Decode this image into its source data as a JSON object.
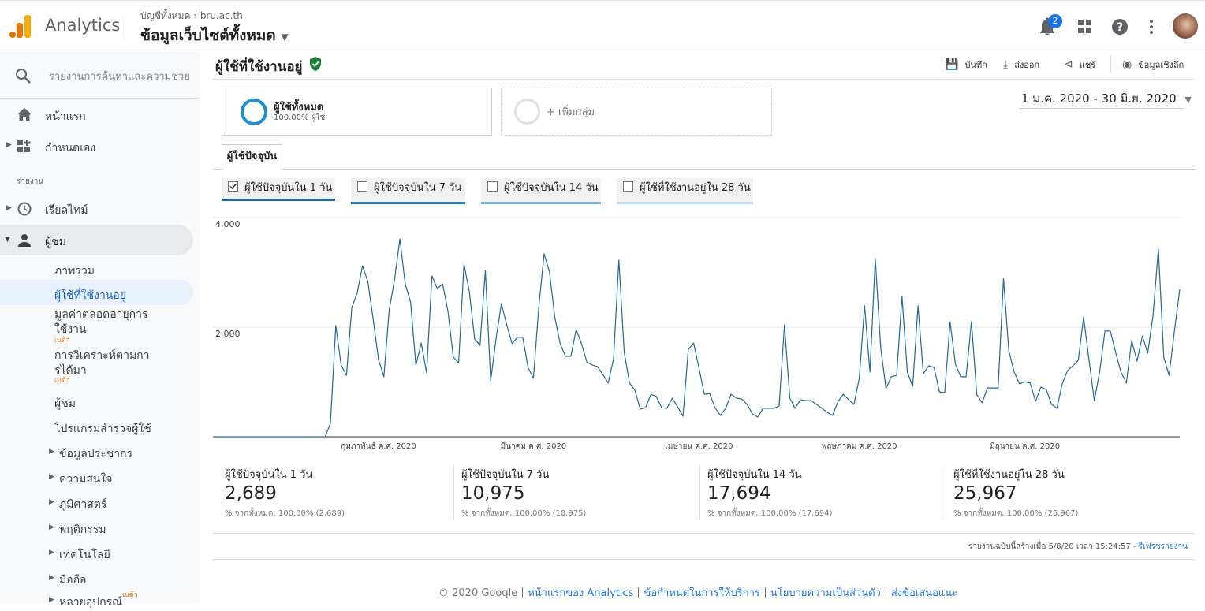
{
  "header": {
    "app_name": "Analytics",
    "breadcrumb": [
      "บัญชีทั้งหมด",
      "bru.ac.th"
    ],
    "view": "ข้อมูลเว็บไซต์ทั้งหมด",
    "notifications": "2"
  },
  "sidebar": {
    "search": "รายงานการค้นหาและความช่วย",
    "home": "หน้าแรก",
    "customization": "กำหนดเอง",
    "reports_heading": "รายงาน",
    "realtime": "เรียลไทม์",
    "audience": "ผู้ชม",
    "audience_items": [
      "ภาพรวม",
      "ผู้ใช้ที่ใช้งานอยู่",
      "มูลค่าตลอดอายุการใช้งาน",
      "การวิเคราะห์ตามการได้มา",
      "ผู้ชม",
      "โปรแกรมสำรวจผู้ใช้",
      "ข้อมูลประชากร",
      "ความสนใจ",
      "ภูมิศาสตร์",
      "พฤติกรรม",
      "เทคโนโลยี",
      "มือถือ",
      "หลายอุปกรณ์"
    ],
    "beta": "เบต้า"
  },
  "report": {
    "title": "ผู้ใช้ที่ใช้งานอยู่",
    "actions": [
      "บันทึก",
      "ส่งออก",
      "แชร์",
      "ข้อมูลเชิงลึก"
    ],
    "segment": {
      "name": "ผู้ใช้ทั้งหมด",
      "detail": "100.00% ผู้ใช้"
    },
    "add_segment": "+ เพิ่มกลุ่ม",
    "date_range": "1 ม.ค. 2020 - 30 มิ.ย. 2020",
    "tab": "ผู้ใช้ปัจจุบัน",
    "metric_options": [
      {
        "label": "ผู้ใช้ปัจจุบันใน 7 วัน",
        "color": "#2f80ba"
      },
      {
        "label": "ผู้ใช้ปัจจุบันใน 14 วัน",
        "color": "#7db4da"
      },
      {
        "label": "ผู้ใช้ที่ใช้งานอยู่ใน 28 วัน",
        "color": "#bcd8ec"
      }
    ],
    "summary": [
      {
        "label": "ผู้ใช้ปัจจุบันใน 1 วัน",
        "value": "2,689",
        "detail": "% จากทั้งหมด: 100.00% (2,689)"
      },
      {
        "label": "ผู้ใช้ปัจจุบันใน 7 วัน",
        "value": "10,975",
        "detail": "% จากทั้งหมด: 100.00% (10,975)"
      },
      {
        "label": "ผู้ใช้ปัจจุบันใน 14 วัน",
        "value": "17,694",
        "detail": "% จากทั้งหมด: 100.00% (17,694)"
      },
      {
        "label": "ผู้ใช้ที่ใช้งานอยู่ใน 28 วัน",
        "value": "25,967",
        "detail": "% จากทั้งหมด: 100.00% (25,967)"
      }
    ],
    "generated": "รายงานฉบับนี้สร้างเมื่อ 5/8/20 เวลา 15:24:57 -",
    "refresh": "รีเฟรชรายงาน"
  },
  "footer": {
    "copyright": "© 2020 Google",
    "links": [
      "หน้าแรกของ Analytics",
      "ข้อกำหนดในการให้บริการ",
      "นโยบายความเป็นส่วนตัว",
      "ส่งข้อเสนอแนะ"
    ]
  },
  "chart_data": {
    "type": "line",
    "series": [
      {
        "name": "ผู้ใช้ปัจจุบันใน 1 วัน",
        "color": "#22699b",
        "values": [
          0,
          0,
          0,
          0,
          0,
          0,
          0,
          0,
          0,
          0,
          0,
          0,
          0,
          0,
          0,
          0,
          0,
          0,
          0,
          0,
          0,
          0,
          245,
          2030,
          1310,
          1120,
          2360,
          2620,
          3120,
          2835,
          2145,
          1410,
          1095,
          2315,
          2865,
          3610,
          2790,
          2460,
          1310,
          1710,
          1165,
          2935,
          2705,
          2790,
          2290,
          1455,
          1350,
          3150,
          2650,
          1785,
          1670,
          3035,
          1020,
          1785,
          2430,
          2045,
          1700,
          1815,
          1815,
          1265,
          1065,
          2360,
          3340,
          3010,
          2185,
          1700,
          1470,
          1470,
          1955,
          1700,
          1365,
          1310,
          1280,
          1135,
          980,
          1425,
          3225,
          1540,
          980,
          850,
          505,
          530,
          775,
          735,
          530,
          520,
          705,
          545,
          375,
          1595,
          1710,
          1250,
          775,
          790,
          530,
          390,
          520,
          775,
          705,
          690,
          590,
          415,
          360,
          520,
          520,
          520,
          560,
          2045,
          705,
          520,
          675,
          660,
          660,
          590,
          520,
          445,
          390,
          635,
          775,
          675,
          590,
          1065,
          2390,
          1180,
          3250,
          1640,
          880,
          1095,
          1120,
          2560,
          1180,
          920,
          2390,
          1150,
          1295,
          1265,
          820,
          805,
          2100,
          1325,
          1095,
          1095,
          2100,
          775,
          620,
          890,
          890,
          890,
          2890,
          1570,
          1180,
          965,
          1005,
          980,
          645,
          905,
          865,
          590,
          520,
          965,
          1210,
          1295,
          1395,
          2185,
          1410,
          660,
          1180,
          1930,
          1930,
          1540,
          1180,
          980,
          1755,
          1380,
          1840,
          1525,
          2215,
          3425,
          1455,
          1120,
          1930,
          2690
        ]
      }
    ],
    "categories": [
      null,
      null,
      null,
      null,
      null,
      null,
      null,
      null,
      null,
      null,
      null,
      null,
      null,
      null,
      null,
      null,
      null,
      null,
      null,
      null,
      null,
      null,
      null,
      null,
      null,
      null,
      null,
      null,
      null,
      null,
      null,
      "กุมภาพันธ์ ค.ศ. 2020",
      null,
      null,
      null,
      null,
      null,
      null,
      null,
      null,
      null,
      null,
      null,
      null,
      null,
      null,
      null,
      null,
      null,
      null,
      null,
      null,
      null,
      null,
      null,
      null,
      null,
      null,
      null,
      null,
      "มีนาคม ค.ศ. 2020",
      null,
      null,
      null,
      null,
      null,
      null,
      null,
      null,
      null,
      null,
      null,
      null,
      null,
      null,
      null,
      null,
      null,
      null,
      null,
      null,
      null,
      null,
      null,
      null,
      null,
      null,
      null,
      null,
      null,
      null,
      "เมษายน ค.ศ. 2020",
      null,
      null,
      null,
      null,
      null,
      null,
      null,
      null,
      null,
      null,
      null,
      null,
      null,
      null,
      null,
      null,
      null,
      null,
      null,
      null,
      null,
      null,
      null,
      null,
      null,
      null,
      null,
      null,
      null,
      "พฤษภาคม ค.ศ. 2020",
      null,
      null,
      null,
      null,
      null,
      null,
      null,
      null,
      null,
      null,
      null,
      null,
      null,
      null,
      null,
      null,
      null,
      null,
      null,
      null,
      null,
      null,
      null,
      null,
      null,
      null,
      null,
      null,
      null,
      null,
      "มิถุนายน ค.ศ. 2020",
      null,
      null,
      null,
      null,
      null,
      null,
      null,
      null,
      null,
      null,
      null,
      null,
      null,
      null,
      null,
      null,
      null,
      null,
      null,
      null,
      null,
      null,
      null,
      null,
      null,
      null,
      null,
      null,
      null
    ],
    "ylim": [
      0,
      4000
    ],
    "yticks": [
      {
        "value": 2000,
        "label": "2,000"
      },
      {
        "value": 4000,
        "label": "4,000"
      }
    ],
    "grid": true
  }
}
